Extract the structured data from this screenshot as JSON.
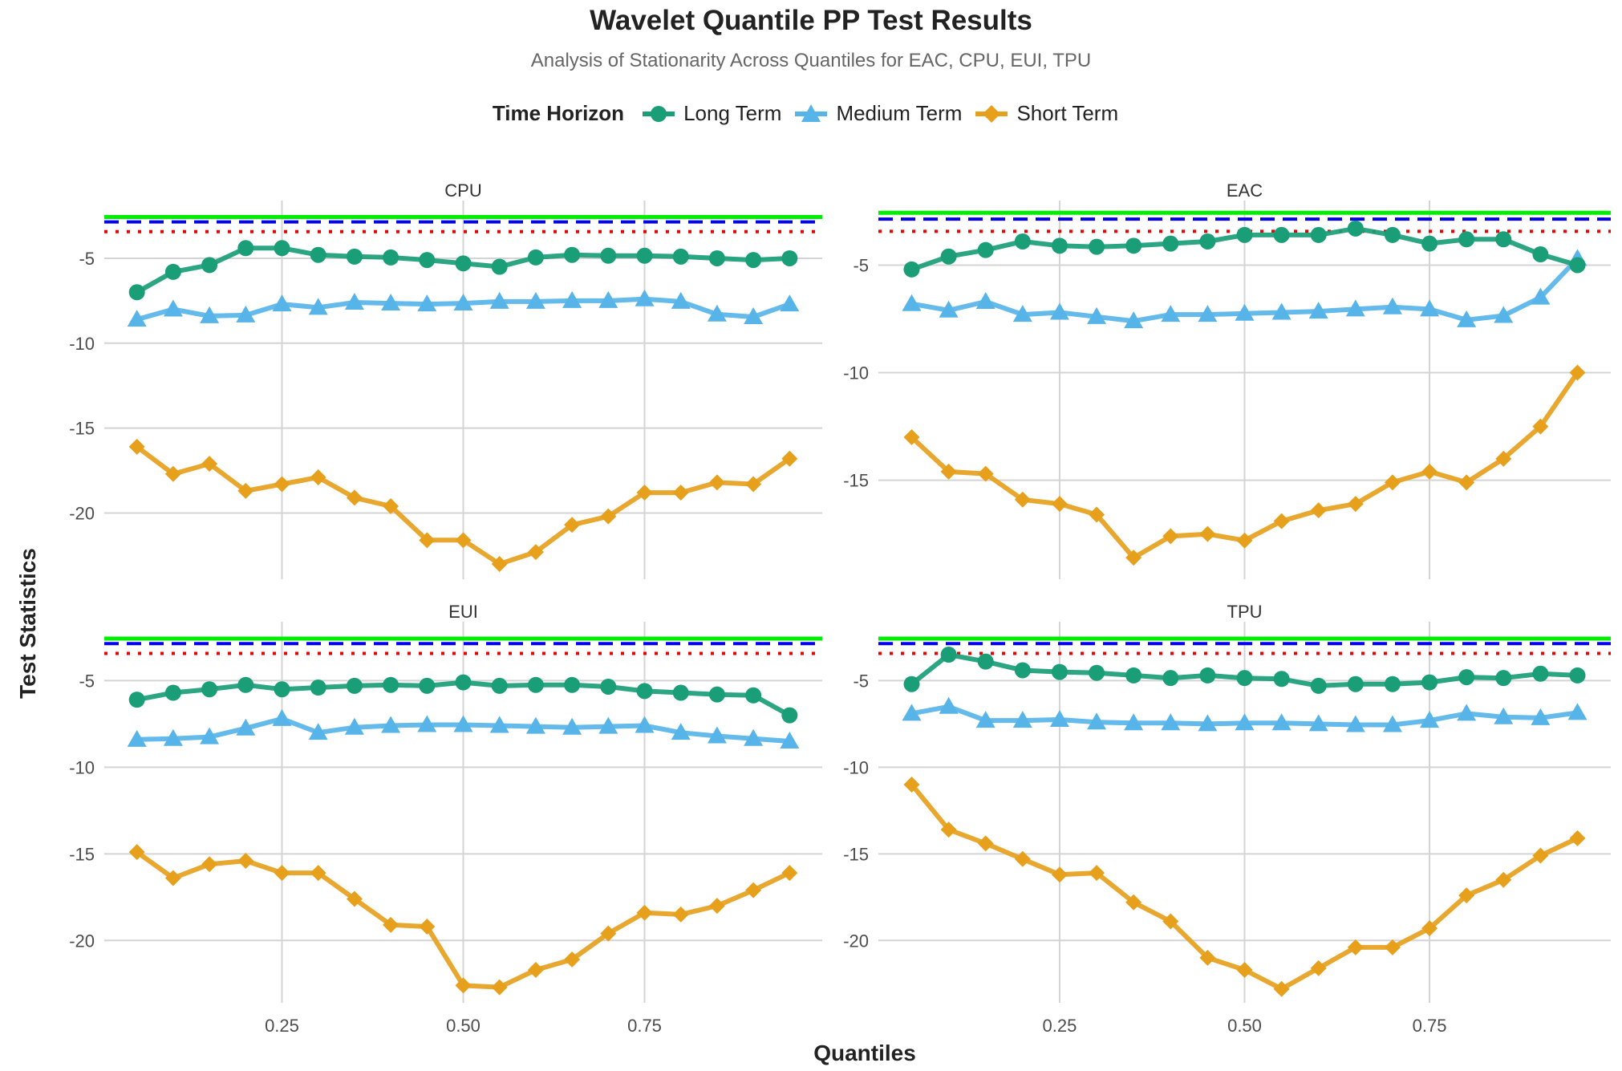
{
  "title": "Wavelet Quantile PP Test Results",
  "subtitle": "Analysis of Stationarity Across Quantiles for EAC, CPU, EUI, TPU",
  "legend": {
    "title": "Time Horizon",
    "items": [
      {
        "label": "Long Term",
        "color": "#1a9e77",
        "marker": "circle"
      },
      {
        "label": "Medium Term",
        "color": "#56b4e9",
        "marker": "triangle"
      },
      {
        "label": "Short Term",
        "color": "#e6a01c",
        "marker": "diamond"
      }
    ]
  },
  "xlabel": "Quantiles",
  "ylabel": "Test Statistics",
  "reference_lines": [
    {
      "value": -2.57,
      "color": "#00ee00",
      "style": "solid"
    },
    {
      "value": -2.86,
      "color": "#0000ee",
      "style": "dashed"
    },
    {
      "value": -3.43,
      "color": "#ee0000",
      "style": "dotted"
    }
  ],
  "chart_data": [
    {
      "type": "line",
      "panel": "CPU",
      "x": [
        0.05,
        0.1,
        0.15,
        0.2,
        0.25,
        0.3,
        0.35,
        0.4,
        0.45,
        0.5,
        0.55,
        0.6,
        0.65,
        0.7,
        0.75,
        0.8,
        0.85,
        0.9,
        0.95
      ],
      "ylim": [
        -23.9,
        -1.6
      ],
      "yticks": [
        -5,
        -10,
        -15,
        -20
      ],
      "xticks": [
        0.25,
        0.5,
        0.75
      ],
      "xlim": [
        0.005,
        0.995
      ],
      "series": [
        {
          "name": "Long Term",
          "values": [
            -7.0,
            -5.8,
            -5.4,
            -4.4,
            -4.4,
            -4.8,
            -4.9,
            -4.95,
            -5.1,
            -5.3,
            -5.5,
            -4.95,
            -4.8,
            -4.85,
            -4.85,
            -4.9,
            -5.0,
            -5.1,
            -5.0
          ]
        },
        {
          "name": "Medium Term",
          "values": [
            -8.6,
            -8.0,
            -8.4,
            -8.35,
            -7.7,
            -7.9,
            -7.6,
            -7.65,
            -7.7,
            -7.65,
            -7.55,
            -7.55,
            -7.5,
            -7.5,
            -7.4,
            -7.55,
            -8.3,
            -8.45,
            -7.7
          ]
        },
        {
          "name": "Short Term",
          "values": [
            -16.1,
            -17.7,
            -17.1,
            -18.7,
            -18.3,
            -17.9,
            -19.1,
            -19.6,
            -21.6,
            -21.6,
            -23.0,
            -22.3,
            -20.7,
            -20.2,
            -18.8,
            -18.8,
            -18.2,
            -18.3,
            -16.8
          ]
        }
      ]
    },
    {
      "type": "line",
      "panel": "EAC",
      "x": [
        0.05,
        0.1,
        0.15,
        0.2,
        0.25,
        0.3,
        0.35,
        0.4,
        0.45,
        0.5,
        0.55,
        0.6,
        0.65,
        0.7,
        0.75,
        0.8,
        0.85,
        0.9,
        0.95
      ],
      "ylim": [
        -19.6,
        -2.0
      ],
      "yticks": [
        -5,
        -10,
        -15
      ],
      "xticks": [
        0.25,
        0.5,
        0.75
      ],
      "xlim": [
        0.005,
        0.995
      ],
      "series": [
        {
          "name": "Long Term",
          "values": [
            -5.2,
            -4.6,
            -4.3,
            -3.9,
            -4.1,
            -4.15,
            -4.1,
            -4.0,
            -3.9,
            -3.6,
            -3.6,
            -3.6,
            -3.3,
            -3.6,
            -4.0,
            -3.8,
            -3.8,
            -4.5,
            -5.0
          ]
        },
        {
          "name": "Medium Term",
          "values": [
            -6.8,
            -7.1,
            -6.7,
            -7.3,
            -7.2,
            -7.4,
            -7.6,
            -7.3,
            -7.3,
            -7.25,
            -7.2,
            -7.15,
            -7.05,
            -6.95,
            -7.05,
            -7.55,
            -7.35,
            -6.5,
            -4.7
          ]
        },
        {
          "name": "Short Term",
          "values": [
            -13.0,
            -14.6,
            -14.7,
            -15.9,
            -16.1,
            -16.6,
            -18.6,
            -17.6,
            -17.5,
            -17.8,
            -16.9,
            -16.4,
            -16.1,
            -15.1,
            -14.6,
            -15.1,
            -14.0,
            -12.5,
            -10.0
          ]
        }
      ]
    },
    {
      "type": "line",
      "panel": "EUI",
      "x": [
        0.05,
        0.1,
        0.15,
        0.2,
        0.25,
        0.3,
        0.35,
        0.4,
        0.45,
        0.5,
        0.55,
        0.6,
        0.65,
        0.7,
        0.75,
        0.8,
        0.85,
        0.9,
        0.95
      ],
      "ylim": [
        -23.6,
        -1.6
      ],
      "yticks": [
        -5,
        -10,
        -15,
        -20
      ],
      "xticks": [
        0.25,
        0.5,
        0.75
      ],
      "xlim": [
        0.005,
        0.995
      ],
      "series": [
        {
          "name": "Long Term",
          "values": [
            -6.1,
            -5.7,
            -5.5,
            -5.25,
            -5.5,
            -5.4,
            -5.3,
            -5.25,
            -5.3,
            -5.1,
            -5.3,
            -5.25,
            -5.25,
            -5.35,
            -5.6,
            -5.7,
            -5.8,
            -5.85,
            -7.0
          ]
        },
        {
          "name": "Medium Term",
          "values": [
            -8.4,
            -8.35,
            -8.25,
            -7.75,
            -7.2,
            -8.0,
            -7.7,
            -7.6,
            -7.55,
            -7.55,
            -7.6,
            -7.65,
            -7.7,
            -7.65,
            -7.6,
            -8.0,
            -8.2,
            -8.35,
            -8.5
          ]
        },
        {
          "name": "Short Term",
          "values": [
            -14.9,
            -16.4,
            -15.6,
            -15.4,
            -16.1,
            -16.1,
            -17.6,
            -19.1,
            -19.2,
            -22.6,
            -22.7,
            -21.7,
            -21.1,
            -19.6,
            -18.4,
            -18.5,
            -18.0,
            -17.1,
            -16.1
          ]
        }
      ]
    },
    {
      "type": "line",
      "panel": "TPU",
      "x": [
        0.05,
        0.1,
        0.15,
        0.2,
        0.25,
        0.3,
        0.35,
        0.4,
        0.45,
        0.5,
        0.55,
        0.6,
        0.65,
        0.7,
        0.75,
        0.8,
        0.85,
        0.9,
        0.95
      ],
      "ylim": [
        -23.6,
        -1.6
      ],
      "yticks": [
        -5,
        -10,
        -15,
        -20
      ],
      "xticks": [
        0.25,
        0.5,
        0.75
      ],
      "xlim": [
        0.005,
        0.995
      ],
      "series": [
        {
          "name": "Long Term",
          "values": [
            -5.2,
            -3.5,
            -3.9,
            -4.4,
            -4.5,
            -4.55,
            -4.7,
            -4.85,
            -4.7,
            -4.85,
            -4.9,
            -5.3,
            -5.2,
            -5.2,
            -5.1,
            -4.8,
            -4.85,
            -4.6,
            -4.7
          ]
        },
        {
          "name": "Medium Term",
          "values": [
            -6.9,
            -6.5,
            -7.3,
            -7.3,
            -7.25,
            -7.4,
            -7.45,
            -7.45,
            -7.5,
            -7.45,
            -7.45,
            -7.5,
            -7.55,
            -7.55,
            -7.3,
            -6.9,
            -7.1,
            -7.15,
            -6.85
          ]
        },
        {
          "name": "Short Term",
          "values": [
            -11.0,
            -13.6,
            -14.4,
            -15.3,
            -16.2,
            -16.1,
            -17.8,
            -18.9,
            -21.0,
            -21.7,
            -22.8,
            -21.6,
            -20.4,
            -20.4,
            -19.3,
            -17.4,
            -16.5,
            -15.1,
            -14.1
          ]
        }
      ]
    }
  ]
}
